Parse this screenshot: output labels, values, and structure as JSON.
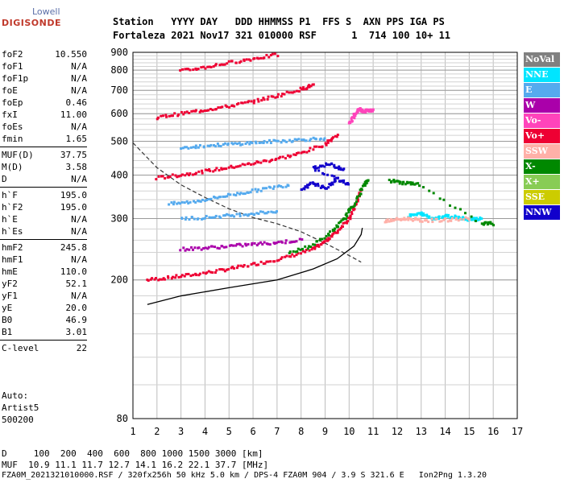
{
  "logo": {
    "brand": "Lowell",
    "product": "DIGISONDE"
  },
  "header": {
    "line1": "Station   YYYY DAY   DDD HHMMSS P1  FFS S  AXN PPS IGA PS",
    "line2": "Fortaleza 2021 Nov17 321 010000 RSF      1  714 100 10+ 11"
  },
  "params": [
    {
      "name": "foF2",
      "value": "10.550"
    },
    {
      "name": "foF1",
      "value": "N/A"
    },
    {
      "name": "foF1p",
      "value": "N/A"
    },
    {
      "name": "foE",
      "value": "N/A"
    },
    {
      "name": "foEp",
      "value": "0.46"
    },
    {
      "name": "fxI",
      "value": "11.00"
    },
    {
      "name": "foEs",
      "value": "N/A"
    },
    {
      "name": "fmin",
      "value": "1.65"
    },
    {
      "name": "MUF(D)",
      "value": "37.75"
    },
    {
      "name": "M(D)",
      "value": "3.58"
    },
    {
      "name": "D",
      "value": "N/A"
    },
    {
      "name": "h`F",
      "value": "195.0"
    },
    {
      "name": "h`F2",
      "value": "195.0"
    },
    {
      "name": "h`E",
      "value": "N/A"
    },
    {
      "name": "h`Es",
      "value": "N/A"
    },
    {
      "name": "hmF2",
      "value": "245.8"
    },
    {
      "name": "hmF1",
      "value": "N/A"
    },
    {
      "name": "hmE",
      "value": "110.0"
    },
    {
      "name": "yF2",
      "value": "52.1"
    },
    {
      "name": "yF1",
      "value": "N/A"
    },
    {
      "name": "yE",
      "value": "20.0"
    },
    {
      "name": "B0",
      "value": "46.9"
    },
    {
      "name": "B1",
      "value": "3.01"
    },
    {
      "name": "C-level",
      "value": "22"
    }
  ],
  "autoscale": {
    "line1": "Auto:",
    "line2": "Artist5",
    "line3": "500200"
  },
  "legend": [
    {
      "label": "NoVal",
      "color": "#808080"
    },
    {
      "label": "NNE",
      "color": "#00e5ff"
    },
    {
      "label": "E",
      "color": "#55aaee"
    },
    {
      "label": "W",
      "color": "#aa00aa"
    },
    {
      "label": "Vo-",
      "color": "#ff44bb"
    },
    {
      "label": "Vo+",
      "color": "#ee0033"
    },
    {
      "label": "SSW",
      "color": "#ffb0a8"
    },
    {
      "label": "X-",
      "color": "#008800"
    },
    {
      "label": "X+",
      "color": "#88cc55"
    },
    {
      "label": "SSE",
      "color": "#cccc00"
    },
    {
      "label": "NNW",
      "color": "#1100cc"
    }
  ],
  "footer": {
    "line1": "D     100  200  400  600  800 1000 1500 3000 [km]",
    "line2": "MUF  10.9 11.1 11.7 12.7 14.1 16.2 22.1 37.7 [MHz]",
    "line3": "FZA0M_2021321010000.RSF / 320fx256h 50 kHz 5.0 km / DPS-4 FZA0M 904 / 3.9 S 321.6 E   Ion2Png 1.3.20"
  },
  "chart_data": {
    "type": "scatter",
    "xlabel": "",
    "ylabel": "",
    "xlim": [
      1,
      17
    ],
    "ylim": [
      80,
      900
    ],
    "y_scale": "log",
    "grid": true,
    "x_ticks": [
      1,
      2,
      3,
      4,
      5,
      6,
      7,
      8,
      9,
      10,
      11,
      12,
      13,
      14,
      15,
      16,
      17
    ],
    "y_ticks": [
      80,
      200,
      300,
      400,
      500,
      600,
      700,
      800,
      900
    ],
    "traces": [
      {
        "name": "O-trace",
        "color": "#ee0033",
        "points": [
          [
            1.6,
            200
          ],
          [
            2.5,
            203
          ],
          [
            3.5,
            207
          ],
          [
            4.5,
            212
          ],
          [
            5.5,
            218
          ],
          [
            6.5,
            225
          ],
          [
            7.5,
            233
          ],
          [
            8.5,
            245
          ],
          [
            9.0,
            258
          ],
          [
            9.5,
            275
          ],
          [
            10.0,
            300
          ],
          [
            10.3,
            330
          ],
          [
            10.5,
            365
          ]
        ]
      },
      {
        "name": "2nd-hop",
        "color": "#ee0033",
        "points": [
          [
            2.0,
            392
          ],
          [
            3.0,
            400
          ],
          [
            4.0,
            410
          ],
          [
            5.0,
            420
          ],
          [
            6.0,
            432
          ],
          [
            7.0,
            445
          ],
          [
            8.0,
            462
          ],
          [
            9.0,
            490
          ],
          [
            9.5,
            520
          ]
        ]
      },
      {
        "name": "3rd-hop",
        "color": "#ee0033",
        "points": [
          [
            2.0,
            585
          ],
          [
            3.0,
            600
          ],
          [
            4.0,
            615
          ],
          [
            5.0,
            630
          ],
          [
            6.0,
            650
          ],
          [
            7.0,
            675
          ],
          [
            8.0,
            705
          ],
          [
            8.5,
            725
          ]
        ]
      },
      {
        "name": "4th-hop",
        "color": "#ee0033",
        "points": [
          [
            3.0,
            795
          ],
          [
            4.0,
            815
          ],
          [
            5.0,
            840
          ],
          [
            6.0,
            862
          ],
          [
            7.0,
            885
          ]
        ]
      },
      {
        "name": "X-trace",
        "color": "#008800",
        "points": [
          [
            7.5,
            238
          ],
          [
            8.5,
            252
          ],
          [
            9.3,
            275
          ],
          [
            9.8,
            300
          ],
          [
            10.2,
            330
          ],
          [
            10.6,
            370
          ],
          [
            10.8,
            390
          ]
        ]
      },
      {
        "name": "F-cusp",
        "color": "#ff44bb",
        "points": [
          [
            10.0,
            560
          ],
          [
            10.2,
            590
          ],
          [
            10.4,
            620
          ],
          [
            10.6,
            610
          ],
          [
            10.8,
            612
          ],
          [
            11.0,
            615
          ]
        ]
      },
      {
        "name": "oblique-W",
        "color": "#aa00aa",
        "points": [
          [
            3.0,
            245
          ],
          [
            4.0,
            247
          ],
          [
            5.0,
            250
          ],
          [
            6.0,
            253
          ],
          [
            7.0,
            256
          ],
          [
            8.0,
            260
          ]
        ]
      },
      {
        "name": "oblique-E-low",
        "color": "#55aaee",
        "points": [
          [
            3.0,
            300
          ],
          [
            4.0,
            302
          ],
          [
            5.0,
            306
          ],
          [
            6.0,
            310
          ],
          [
            7.0,
            315
          ]
        ]
      },
      {
        "name": "oblique-E-band",
        "color": "#55aaee",
        "points": [
          [
            2.5,
            330
          ],
          [
            3.5,
            335
          ],
          [
            4.5,
            345
          ],
          [
            5.5,
            355
          ],
          [
            6.5,
            365
          ],
          [
            7.5,
            375
          ]
        ]
      },
      {
        "name": "oblique-E-upper",
        "color": "#55aaee",
        "points": [
          [
            3.0,
            480
          ],
          [
            4.0,
            485
          ],
          [
            5.0,
            490
          ],
          [
            6.0,
            495
          ],
          [
            7.0,
            500
          ],
          [
            8.0,
            505
          ],
          [
            9.0,
            510
          ]
        ]
      },
      {
        "name": "NNW-cluster",
        "color": "#1100cc",
        "points": [
          [
            8.0,
            360
          ],
          [
            8.5,
            380
          ],
          [
            9.0,
            365
          ],
          [
            9.5,
            390
          ],
          [
            10.0,
            375
          ],
          [
            8.5,
            420
          ],
          [
            9.2,
            430
          ],
          [
            9.8,
            415
          ]
        ]
      },
      {
        "name": "far-oblique",
        "color": "#00e5ff",
        "points": [
          [
            12.5,
            305
          ],
          [
            13.0,
            310
          ],
          [
            13.5,
            300
          ],
          [
            14.0,
            305
          ],
          [
            14.5,
            303
          ],
          [
            15.0,
            298
          ],
          [
            15.5,
            300
          ]
        ]
      },
      {
        "name": "SSW-far",
        "color": "#ffb0a8",
        "points": [
          [
            11.5,
            295
          ],
          [
            12.0,
            298
          ],
          [
            12.5,
            300
          ],
          [
            13.0,
            296
          ],
          [
            14.0,
            297
          ],
          [
            15.0,
            300
          ]
        ]
      },
      {
        "name": "X-far",
        "color": "#008800",
        "points": [
          [
            11.7,
            385
          ],
          [
            12.3,
            380
          ],
          [
            12.9,
            375
          ],
          [
            15.5,
            290
          ],
          [
            16.0,
            290
          ]
        ]
      }
    ],
    "profile_curve": [
      [
        1.6,
        170
      ],
      [
        3,
        180
      ],
      [
        5,
        190
      ],
      [
        7,
        200
      ],
      [
        8.5,
        215
      ],
      [
        9.5,
        230
      ],
      [
        10.2,
        250
      ],
      [
        10.5,
        270
      ],
      [
        10.55,
        282
      ]
    ],
    "dashed_curve": [
      [
        1,
        495
      ],
      [
        2,
        420
      ],
      [
        3,
        375
      ],
      [
        4,
        345
      ],
      [
        5,
        320
      ],
      [
        6,
        302
      ],
      [
        7,
        290
      ],
      [
        8,
        275
      ],
      [
        9,
        255
      ],
      [
        10,
        235
      ],
      [
        10.5,
        225
      ]
    ]
  }
}
